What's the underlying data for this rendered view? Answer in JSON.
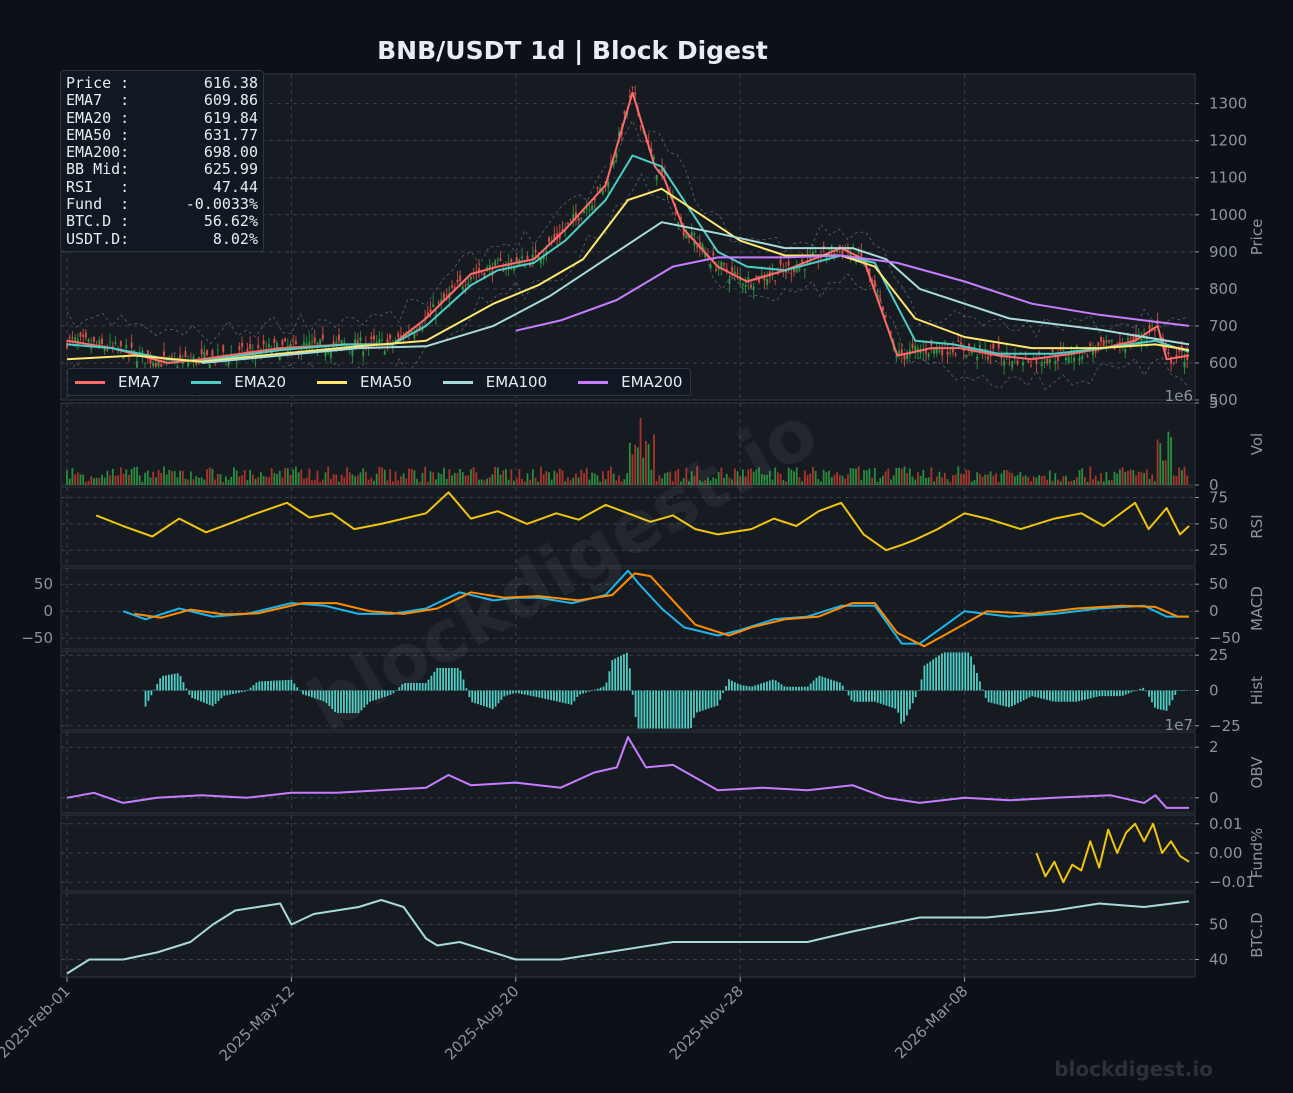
{
  "title": "BNB/USDT  1d  |  Block Digest",
  "stats": [
    {
      "label": "Price :",
      "value": "616.38"
    },
    {
      "label": "EMA7  :",
      "value": "609.86"
    },
    {
      "label": "EMA20 :",
      "value": "619.84"
    },
    {
      "label": "EMA50 :",
      "value": "631.77"
    },
    {
      "label": "EMA200:",
      "value": "698.00"
    },
    {
      "label": "BB Mid:",
      "value": "625.99"
    },
    {
      "label": "RSI   :",
      "value": "47.44"
    },
    {
      "label": "Fund  :",
      "value": "-0.0033%"
    },
    {
      "label": "BTC.D :",
      "value": "56.62%"
    },
    {
      "label": "USDT.D:",
      "value": "8.02%"
    }
  ],
  "legend": [
    {
      "name": "EMA7",
      "color": "#ff6b6b"
    },
    {
      "name": "EMA20",
      "color": "#4ecdc4"
    },
    {
      "name": "EMA50",
      "color": "#ffe66d"
    },
    {
      "name": "EMA100",
      "color": "#a8dadc"
    },
    {
      "name": "EMA200",
      "color": "#c77dff"
    }
  ],
  "watermark_center": "blockdigest.io",
  "watermark_corner": "blockdigest.io",
  "chart_data": {
    "type": "line",
    "title": "BNB/USDT  1d  |  Block Digest",
    "x_tick_labels": [
      "2025-Feb-01",
      "2025-May-12",
      "2025-Aug-20",
      "2025-Nov-28",
      "2026-Mar-08"
    ],
    "x_tick_days": [
      0,
      100,
      200,
      300,
      400
    ],
    "x_range_days": [
      0,
      500
    ],
    "grid": true,
    "legend_position": "lower-left",
    "panels": [
      {
        "key": "price",
        "ylabel": "Price",
        "ylim": [
          500,
          1380
        ],
        "yticks": [
          500,
          600,
          700,
          800,
          900,
          1000,
          1100,
          1200,
          1300
        ],
        "series": [
          {
            "name": "EMA7",
            "color": "#ff6b6b",
            "x": [
              0,
              20,
              45,
              60,
              95,
              125,
              145,
              160,
              180,
              192,
              208,
              222,
              240,
              252,
              262,
              266,
              275,
              290,
              303,
              320,
              345,
              355,
              370,
              378,
              385,
              398,
              415,
              430,
              448,
              462,
              476,
              486,
              490,
              500
            ],
            "y": [
              660,
              640,
              600,
              610,
              640,
              650,
              650,
              720,
              840,
              860,
              880,
              960,
              1080,
              1330,
              1130,
              1100,
              960,
              860,
              820,
              850,
              910,
              880,
              620,
              630,
              640,
              640,
              620,
              610,
              625,
              640,
              660,
              700,
              610,
              620
            ]
          },
          {
            "name": "EMA20",
            "color": "#4ecdc4",
            "x": [
              0,
              20,
              45,
              60,
              95,
              125,
              145,
              160,
              180,
              192,
              208,
              222,
              240,
              252,
              265,
              278,
              290,
              303,
              320,
              345,
              360,
              378,
              395,
              415,
              440,
              462,
              485,
              500
            ],
            "y": [
              650,
              640,
              610,
              605,
              635,
              650,
              650,
              700,
              810,
              850,
              870,
              930,
              1040,
              1160,
              1130,
              1010,
              900,
              860,
              850,
              890,
              870,
              660,
              650,
              625,
              625,
              640,
              660,
              630
            ]
          },
          {
            "name": "EMA50",
            "color": "#ffe66d",
            "x": [
              0,
              30,
              60,
              95,
              130,
              160,
              190,
              210,
              230,
              250,
              265,
              280,
              300,
              320,
              345,
              360,
              378,
              400,
              430,
              460,
              485,
              500
            ],
            "y": [
              610,
              620,
              603,
              625,
              645,
              660,
              760,
              810,
              880,
              1040,
              1070,
              1010,
              930,
              890,
              890,
              860,
              720,
              670,
              640,
              640,
              650,
              635
            ]
          },
          {
            "name": "EMA100",
            "color": "#a8dadc",
            "x": [
              60,
              95,
              130,
              160,
              190,
              215,
              240,
              265,
              290,
              320,
              350,
              365,
              380,
              420,
              460,
              500
            ],
            "y": [
              600,
              620,
              640,
              645,
              700,
              780,
              880,
              980,
              950,
              910,
              910,
              880,
              800,
              720,
              690,
              650
            ]
          },
          {
            "name": "EMA200",
            "color": "#c77dff",
            "x": [
              200,
              220,
              245,
              270,
              290,
              320,
              345,
              370,
              400,
              430,
              460,
              500
            ],
            "y": [
              687,
              715,
              770,
              860,
              885,
              885,
              890,
              870,
              820,
              760,
              730,
              700
            ]
          }
        ]
      },
      {
        "key": "vol",
        "ylabel": "Vol",
        "ylim": [
          0,
          5
        ],
        "yticks": [
          0,
          5
        ],
        "offset_label": "1e6"
      },
      {
        "key": "rsi",
        "ylabel": "RSI",
        "ylim": [
          10,
          85
        ],
        "yticks": [
          25,
          50,
          75
        ],
        "series": [
          {
            "name": "RSI",
            "color": "#f1c40f",
            "x": [
              13,
              25,
              38,
              50,
              62,
              72,
              82,
              98,
              108,
              118,
              128,
              140,
              160,
              170,
              180,
              192,
              205,
              218,
              228,
              240,
              250,
              260,
              270,
              280,
              290,
              305,
              315,
              325,
              335,
              345,
              350,
              355,
              365,
              372,
              378,
              388,
              400,
              410,
              425,
              440,
              452,
              462,
              476,
              482,
              490,
              496,
              500
            ],
            "y": [
              58,
              48,
              38,
              55,
              42,
              50,
              58,
              70,
              56,
              60,
              45,
              50,
              60,
              80,
              55,
              62,
              50,
              60,
              54,
              68,
              60,
              52,
              58,
              45,
              40,
              45,
              55,
              48,
              62,
              70,
              55,
              40,
              25,
              30,
              35,
              45,
              60,
              55,
              45,
              55,
              60,
              48,
              70,
              45,
              65,
              40,
              48
            ]
          }
        ]
      },
      {
        "key": "macd",
        "ylabel": "MACD",
        "ylim": [
          -70,
          80
        ],
        "yticks": [
          -50,
          0,
          50
        ],
        "series": [
          {
            "name": "MACD",
            "color": "#1fb5e8",
            "x": [
              25,
              35,
              50,
              65,
              80,
              100,
              115,
              130,
              145,
              160,
              175,
              190,
              200,
              210,
              225,
              240,
              250,
              255,
              265,
              275,
              290,
              300,
              315,
              330,
              345,
              360,
              372,
              380,
              390,
              400,
              420,
              440,
              460,
              480,
              490,
              500
            ],
            "y": [
              0,
              -15,
              5,
              -10,
              -5,
              15,
              10,
              -5,
              -5,
              5,
              35,
              20,
              25,
              25,
              15,
              30,
              75,
              50,
              5,
              -30,
              -45,
              -35,
              -15,
              -10,
              10,
              10,
              -60,
              -60,
              -30,
              0,
              -10,
              -5,
              5,
              10,
              -10,
              -10
            ]
          },
          {
            "name": "Signal",
            "color": "#ff8c00",
            "x": [
              30,
              42,
              55,
              70,
              85,
              105,
              120,
              135,
              150,
              165,
              180,
              195,
              210,
              228,
              243,
              253,
              260,
              270,
              280,
              295,
              305,
              320,
              335,
              350,
              360,
              370,
              382,
              395,
              410,
              430,
              450,
              470,
              485,
              495,
              500
            ],
            "y": [
              -5,
              -12,
              3,
              -6,
              -4,
              15,
              15,
              0,
              -5,
              5,
              35,
              25,
              28,
              20,
              30,
              70,
              65,
              20,
              -25,
              -45,
              -30,
              -15,
              -10,
              15,
              15,
              -40,
              -65,
              -35,
              0,
              -5,
              5,
              10,
              8,
              -10,
              -10
            ]
          }
        ]
      },
      {
        "key": "hist",
        "ylabel": "Hist",
        "ylim": [
          -28,
          28
        ],
        "yticks": [
          -25,
          0,
          25
        ],
        "color": "#4ecdc4"
      },
      {
        "key": "obv",
        "ylabel": "OBV",
        "ylim": [
          -0.6,
          2.6
        ],
        "yticks": [
          0,
          2
        ],
        "offset_label": "1e7",
        "series": [
          {
            "name": "OBV",
            "color": "#c77dff",
            "x": [
              0,
              12,
              25,
              40,
              60,
              80,
              100,
              120,
              140,
              160,
              170,
              180,
              200,
              220,
              235,
              245,
              250,
              258,
              270,
              290,
              310,
              330,
              350,
              365,
              380,
              400,
              420,
              440,
              465,
              480,
              485,
              490,
              500
            ],
            "y": [
              0.0,
              0.2,
              -0.2,
              0.0,
              0.1,
              0.0,
              0.2,
              0.2,
              0.3,
              0.4,
              0.9,
              0.5,
              0.6,
              0.4,
              1.0,
              1.2,
              2.4,
              1.2,
              1.3,
              0.3,
              0.4,
              0.3,
              0.5,
              0.0,
              -0.2,
              0.0,
              -0.1,
              0.0,
              0.1,
              -0.2,
              0.1,
              -0.4,
              -0.4
            ]
          }
        ]
      },
      {
        "key": "fund",
        "ylabel": "Fund%",
        "ylim": [
          -0.013,
          0.013
        ],
        "yticks": [
          -0.01,
          0.0,
          0.01
        ],
        "series": [
          {
            "name": "Fund%",
            "color": "#f1c40f",
            "x": [
              432,
              436,
              440,
              444,
              448,
              452,
              456,
              460,
              464,
              468,
              472,
              476,
              480,
              484,
              488,
              492,
              496,
              500
            ],
            "y": [
              0.0,
              -0.008,
              -0.003,
              -0.01,
              -0.004,
              -0.006,
              0.004,
              -0.005,
              0.008,
              0.0,
              0.007,
              0.01,
              0.004,
              0.01,
              0.0,
              0.004,
              -0.001,
              -0.003
            ]
          }
        ]
      },
      {
        "key": "btcd",
        "ylabel": "BTC.D",
        "ylim": [
          35,
          59
        ],
        "yticks": [
          40,
          50
        ],
        "series": [
          {
            "name": "BTC.D",
            "color": "#a8dadc",
            "x": [
              0,
              10,
              25,
              40,
              55,
              65,
              75,
              85,
              95,
              100,
              110,
              130,
              140,
              150,
              160,
              165,
              175,
              190,
              200,
              220,
              240,
              270,
              300,
              330,
              350,
              365,
              380,
              410,
              440,
              460,
              480,
              500
            ],
            "y": [
              36,
              40,
              40,
              42,
              45,
              50,
              54,
              55,
              56,
              50,
              53,
              55,
              57,
              55,
              46,
              44,
              45,
              42,
              40,
              40,
              42,
              45,
              45,
              45,
              48,
              50,
              52,
              52,
              54,
              56,
              55,
              56.6
            ]
          }
        ]
      }
    ]
  }
}
